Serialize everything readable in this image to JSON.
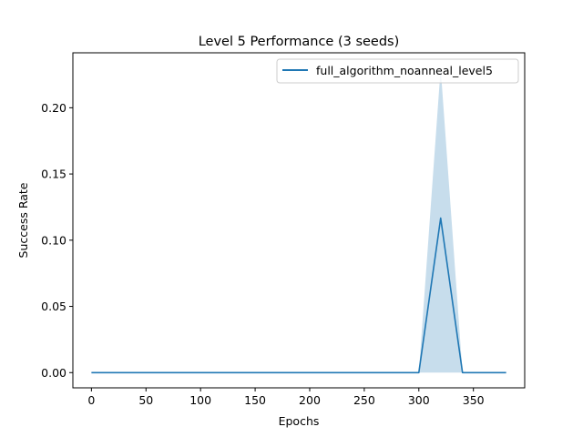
{
  "chart_data": {
    "type": "line",
    "title": "Level 5 Performance (3 seeds)",
    "xlabel": "Epochs",
    "ylabel": "Success Rate",
    "xlim": [
      -17,
      397
    ],
    "ylim": [
      -0.0115,
      0.2415
    ],
    "xticks": [
      0,
      50,
      100,
      150,
      200,
      250,
      300,
      350
    ],
    "yticks": [
      "0.00",
      "0.05",
      "0.10",
      "0.15",
      "0.20"
    ],
    "grid": false,
    "legend_position": "top-right",
    "series": [
      {
        "name": "full_algorithm_noanneal_level5",
        "color": "#1f77b4",
        "x": [
          0,
          20,
          40,
          60,
          80,
          100,
          120,
          140,
          160,
          180,
          200,
          220,
          240,
          260,
          280,
          300,
          320,
          340,
          360,
          380
        ],
        "mean": [
          0,
          0,
          0,
          0,
          0,
          0,
          0,
          0,
          0,
          0,
          0,
          0,
          0,
          0,
          0,
          0,
          0.1167,
          0,
          0,
          0
        ],
        "lower": [
          0,
          0,
          0,
          0,
          0,
          0,
          0,
          0,
          0,
          0,
          0,
          0,
          0,
          0,
          0,
          0,
          0,
          0,
          0,
          0
        ],
        "upper": [
          0,
          0,
          0,
          0,
          0,
          0,
          0,
          0,
          0,
          0,
          0,
          0,
          0,
          0,
          0,
          0,
          0.23,
          0,
          0,
          0
        ]
      }
    ]
  }
}
